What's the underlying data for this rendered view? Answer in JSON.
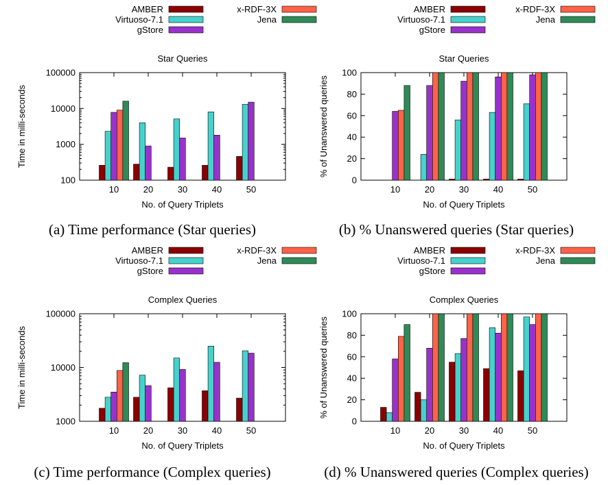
{
  "chart_data": [
    {
      "type": "bar",
      "title": "Star Queries",
      "xlabel": "No. of Query Triplets",
      "ylabel": "Time in milli-seconds",
      "yscale": "log",
      "ylim": [
        100,
        100000
      ],
      "yticks": [
        "100",
        "1000",
        "10000",
        "100000"
      ],
      "categories": [
        "10",
        "20",
        "30",
        "40",
        "50"
      ],
      "caption": "(a) Time performance (Star queries)",
      "legend_placement": "top",
      "series": [
        {
          "name": "AMBER",
          "color": "#8b0000",
          "values": [
            260,
            280,
            230,
            260,
            460
          ]
        },
        {
          "name": "Virtuoso-7.1",
          "color": "#48d1cc",
          "values": [
            2300,
            4000,
            5100,
            8000,
            13000
          ]
        },
        {
          "name": "gStore",
          "color": "#9932cc",
          "values": [
            7800,
            900,
            1500,
            1800,
            15000
          ]
        },
        {
          "name": "x-RDF-3X",
          "color": "#ff6347",
          "values": [
            9000,
            null,
            null,
            null,
            null
          ]
        },
        {
          "name": "Jena",
          "color": "#2e8b57",
          "values": [
            16000,
            null,
            null,
            null,
            null
          ]
        }
      ]
    },
    {
      "type": "bar",
      "title": "Star Queries",
      "xlabel": "No. of Query Triplets",
      "ylabel": "% of Unanswered queries",
      "yscale": "linear",
      "ylim": [
        0,
        100
      ],
      "yticks": [
        "0",
        "20",
        "40",
        "60",
        "80",
        "100"
      ],
      "categories": [
        "10",
        "20",
        "30",
        "40",
        "50"
      ],
      "caption": "(b) % Unanswered queries (Star queries)",
      "legend_placement": "top",
      "series": [
        {
          "name": "AMBER",
          "color": "#8b0000",
          "values": [
            0,
            0,
            1,
            1,
            1
          ]
        },
        {
          "name": "Virtuoso-7.1",
          "color": "#48d1cc",
          "values": [
            0,
            24,
            56,
            63,
            71
          ]
        },
        {
          "name": "gStore",
          "color": "#9932cc",
          "values": [
            64,
            88,
            92,
            96,
            98
          ]
        },
        {
          "name": "x-RDF-3X",
          "color": "#ff6347",
          "values": [
            65,
            100,
            100,
            100,
            100
          ]
        },
        {
          "name": "Jena",
          "color": "#2e8b57",
          "values": [
            88,
            100,
            100,
            100,
            100
          ]
        }
      ]
    },
    {
      "type": "bar",
      "title": "Complex Queries",
      "xlabel": "No. of Query Triplets",
      "ylabel": "Time in milli-seconds",
      "yscale": "log",
      "ylim": [
        1000,
        100000
      ],
      "yticks": [
        "1000",
        "10000",
        "100000"
      ],
      "categories": [
        "10",
        "20",
        "30",
        "40",
        "50"
      ],
      "caption": "(c) Time performance (Complex queries)",
      "legend_placement": "top",
      "series": [
        {
          "name": "AMBER",
          "color": "#8b0000",
          "values": [
            1750,
            2800,
            4200,
            3700,
            2700
          ]
        },
        {
          "name": "Virtuoso-7.1",
          "color": "#48d1cc",
          "values": [
            2800,
            7200,
            15000,
            25000,
            20500
          ]
        },
        {
          "name": "gStore",
          "color": "#9932cc",
          "values": [
            3500,
            4600,
            9200,
            12500,
            18500
          ]
        },
        {
          "name": "x-RDF-3X",
          "color": "#ff6347",
          "values": [
            8800,
            null,
            null,
            null,
            null
          ]
        },
        {
          "name": "Jena",
          "color": "#2e8b57",
          "values": [
            12300,
            null,
            null,
            null,
            null
          ]
        }
      ]
    },
    {
      "type": "bar",
      "title": "Complex Queries",
      "xlabel": "No. of Query Triplets",
      "ylabel": "% of Unanswered queries",
      "yscale": "linear",
      "ylim": [
        0,
        100
      ],
      "yticks": [
        "0",
        "20",
        "40",
        "60",
        "80",
        "100"
      ],
      "categories": [
        "10",
        "20",
        "30",
        "40",
        "50"
      ],
      "caption": "(d) % Unanswered queries (Complex queries)",
      "legend_placement": "top",
      "series": [
        {
          "name": "AMBER",
          "color": "#8b0000",
          "values": [
            13,
            27,
            55,
            49,
            47
          ]
        },
        {
          "name": "Virtuoso-7.1",
          "color": "#48d1cc",
          "values": [
            8,
            20,
            63,
            87,
            97
          ]
        },
        {
          "name": "gStore",
          "color": "#9932cc",
          "values": [
            58,
            68,
            77,
            82,
            90
          ]
        },
        {
          "name": "x-RDF-3X",
          "color": "#ff6347",
          "values": [
            79,
            100,
            100,
            100,
            100
          ]
        },
        {
          "name": "Jena",
          "color": "#2e8b57",
          "values": [
            90,
            100,
            100,
            100,
            100
          ]
        }
      ]
    }
  ]
}
